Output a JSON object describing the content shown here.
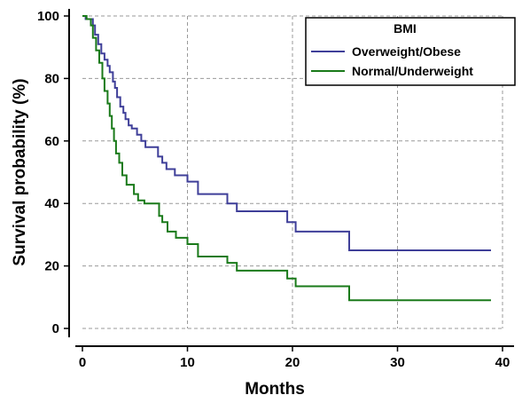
{
  "chart_data": {
    "type": "line",
    "step": true,
    "xlabel": "Months",
    "ylabel": "Survival probability (%)",
    "xlim": [
      0,
      40
    ],
    "ylim": [
      0,
      100
    ],
    "xticks": [
      0,
      10,
      20,
      30,
      40
    ],
    "yticks": [
      0,
      20,
      40,
      60,
      80,
      100
    ],
    "grid": true,
    "legend": {
      "title": "BMI",
      "position": "top-right"
    },
    "series": [
      {
        "name": "Overweight/Obese",
        "color": "#3f3f99",
        "points": [
          [
            0,
            100
          ],
          [
            0.3,
            100
          ],
          [
            0.3,
            99
          ],
          [
            1.0,
            99
          ],
          [
            1.0,
            97
          ],
          [
            1.2,
            97
          ],
          [
            1.2,
            94
          ],
          [
            1.5,
            94
          ],
          [
            1.5,
            91
          ],
          [
            1.8,
            91
          ],
          [
            1.8,
            88
          ],
          [
            2.1,
            88
          ],
          [
            2.1,
            86
          ],
          [
            2.4,
            86
          ],
          [
            2.4,
            84
          ],
          [
            2.6,
            84
          ],
          [
            2.6,
            82
          ],
          [
            2.9,
            82
          ],
          [
            2.9,
            79
          ],
          [
            3.1,
            79
          ],
          [
            3.1,
            77
          ],
          [
            3.3,
            77
          ],
          [
            3.3,
            74
          ],
          [
            3.6,
            74
          ],
          [
            3.6,
            71
          ],
          [
            3.9,
            71
          ],
          [
            3.9,
            69
          ],
          [
            4.1,
            69
          ],
          [
            4.1,
            67
          ],
          [
            4.4,
            67
          ],
          [
            4.4,
            65
          ],
          [
            4.7,
            65
          ],
          [
            4.7,
            64
          ],
          [
            5.2,
            64
          ],
          [
            5.2,
            62
          ],
          [
            5.6,
            62
          ],
          [
            5.6,
            60
          ],
          [
            6.0,
            60
          ],
          [
            6.0,
            58
          ],
          [
            7.2,
            58
          ],
          [
            7.2,
            55
          ],
          [
            7.6,
            55
          ],
          [
            7.6,
            53
          ],
          [
            8.0,
            53
          ],
          [
            8.0,
            51
          ],
          [
            8.8,
            51
          ],
          [
            8.8,
            49
          ],
          [
            10.0,
            49
          ],
          [
            10.0,
            47
          ],
          [
            11.0,
            47
          ],
          [
            11.0,
            43
          ],
          [
            13.8,
            43
          ],
          [
            13.8,
            40
          ],
          [
            14.7,
            40
          ],
          [
            14.7,
            37.5
          ],
          [
            19.5,
            37.5
          ],
          [
            19.5,
            34
          ],
          [
            20.3,
            34
          ],
          [
            20.3,
            31
          ],
          [
            25.4,
            31
          ],
          [
            25.4,
            25
          ],
          [
            38.9,
            25
          ]
        ]
      },
      {
        "name": "Normal/Underweight",
        "color": "#1a7a1a",
        "points": [
          [
            0,
            100
          ],
          [
            0.4,
            100
          ],
          [
            0.4,
            99
          ],
          [
            0.8,
            99
          ],
          [
            0.8,
            97
          ],
          [
            1.0,
            97
          ],
          [
            1.0,
            93
          ],
          [
            1.3,
            93
          ],
          [
            1.3,
            89
          ],
          [
            1.6,
            89
          ],
          [
            1.6,
            85
          ],
          [
            1.9,
            85
          ],
          [
            1.9,
            80
          ],
          [
            2.1,
            80
          ],
          [
            2.1,
            76
          ],
          [
            2.4,
            76
          ],
          [
            2.4,
            72
          ],
          [
            2.6,
            72
          ],
          [
            2.6,
            68
          ],
          [
            2.8,
            68
          ],
          [
            2.8,
            64
          ],
          [
            3.0,
            64
          ],
          [
            3.0,
            60
          ],
          [
            3.2,
            60
          ],
          [
            3.2,
            56
          ],
          [
            3.5,
            56
          ],
          [
            3.5,
            53
          ],
          [
            3.8,
            53
          ],
          [
            3.8,
            49
          ],
          [
            4.2,
            49
          ],
          [
            4.2,
            46
          ],
          [
            4.9,
            46
          ],
          [
            4.9,
            43
          ],
          [
            5.3,
            43
          ],
          [
            5.3,
            41
          ],
          [
            5.9,
            41
          ],
          [
            5.9,
            40
          ],
          [
            7.3,
            40
          ],
          [
            7.3,
            36
          ],
          [
            7.6,
            36
          ],
          [
            7.6,
            34
          ],
          [
            8.1,
            34
          ],
          [
            8.1,
            31
          ],
          [
            8.9,
            31
          ],
          [
            8.9,
            29
          ],
          [
            10.0,
            29
          ],
          [
            10.0,
            27
          ],
          [
            11.0,
            27
          ],
          [
            11.0,
            23
          ],
          [
            13.8,
            23
          ],
          [
            13.8,
            21
          ],
          [
            14.7,
            21
          ],
          [
            14.7,
            18.5
          ],
          [
            19.5,
            18.5
          ],
          [
            19.5,
            16
          ],
          [
            20.3,
            16
          ],
          [
            20.3,
            13.5
          ],
          [
            25.4,
            13.5
          ],
          [
            25.4,
            9
          ],
          [
            38.9,
            9
          ]
        ]
      }
    ]
  }
}
